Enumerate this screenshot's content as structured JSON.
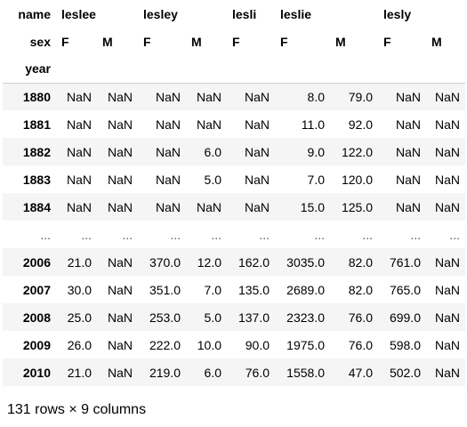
{
  "header": {
    "level0_label": "name",
    "level1_label": "sex",
    "index_label": "year",
    "names": [
      "leslee",
      "lesley",
      "lesli",
      "leslie",
      "lesly"
    ],
    "sex": [
      "F",
      "M",
      "F",
      "M",
      "F",
      "F",
      "M",
      "F",
      "M"
    ]
  },
  "rows_top": [
    {
      "year": "1880",
      "v": [
        "NaN",
        "NaN",
        "NaN",
        "NaN",
        "NaN",
        "8.0",
        "79.0",
        "NaN",
        "NaN"
      ]
    },
    {
      "year": "1881",
      "v": [
        "NaN",
        "NaN",
        "NaN",
        "NaN",
        "NaN",
        "11.0",
        "92.0",
        "NaN",
        "NaN"
      ]
    },
    {
      "year": "1882",
      "v": [
        "NaN",
        "NaN",
        "NaN",
        "6.0",
        "NaN",
        "9.0",
        "122.0",
        "NaN",
        "NaN"
      ]
    },
    {
      "year": "1883",
      "v": [
        "NaN",
        "NaN",
        "NaN",
        "5.0",
        "NaN",
        "7.0",
        "120.0",
        "NaN",
        "NaN"
      ]
    },
    {
      "year": "1884",
      "v": [
        "NaN",
        "NaN",
        "NaN",
        "NaN",
        "NaN",
        "15.0",
        "125.0",
        "NaN",
        "NaN"
      ]
    }
  ],
  "ellipsis": "...",
  "rows_bottom": [
    {
      "year": "2006",
      "v": [
        "21.0",
        "NaN",
        "370.0",
        "12.0",
        "162.0",
        "3035.0",
        "82.0",
        "761.0",
        "NaN"
      ]
    },
    {
      "year": "2007",
      "v": [
        "30.0",
        "NaN",
        "351.0",
        "7.0",
        "135.0",
        "2689.0",
        "82.0",
        "765.0",
        "NaN"
      ]
    },
    {
      "year": "2008",
      "v": [
        "25.0",
        "NaN",
        "253.0",
        "5.0",
        "137.0",
        "2323.0",
        "76.0",
        "699.0",
        "NaN"
      ]
    },
    {
      "year": "2009",
      "v": [
        "26.0",
        "NaN",
        "222.0",
        "10.0",
        "90.0",
        "1975.0",
        "76.0",
        "598.0",
        "NaN"
      ]
    },
    {
      "year": "2010",
      "v": [
        "21.0",
        "NaN",
        "219.0",
        "6.0",
        "76.0",
        "1558.0",
        "47.0",
        "502.0",
        "NaN"
      ]
    }
  ],
  "footer": "131 rows × 9 columns"
}
